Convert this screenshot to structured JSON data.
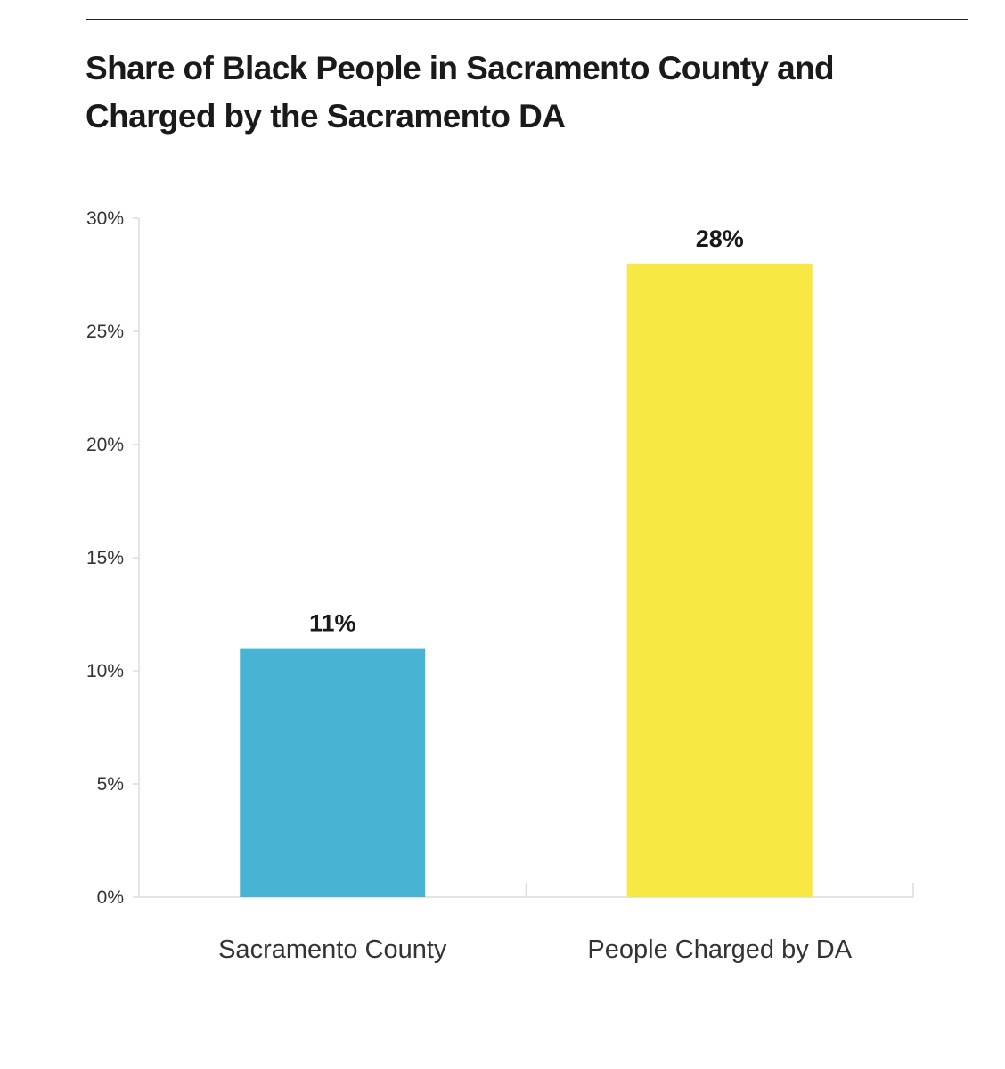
{
  "chart_data": {
    "type": "bar",
    "title": "Share of Black People in Sacramento County and Charged by the Sacramento DA",
    "categories": [
      "Sacramento County",
      "People Charged by DA"
    ],
    "values": [
      11,
      28
    ],
    "data_labels": [
      "11%",
      "28%"
    ],
    "colors": [
      "#48b4d4",
      "#f7e844"
    ],
    "ylim": [
      0,
      30
    ],
    "yticks": [
      0,
      5,
      10,
      15,
      20,
      25,
      30
    ],
    "ytick_labels": [
      "0%",
      "5%",
      "10%",
      "15%",
      "20%",
      "25%",
      "30%"
    ],
    "xlabel": "",
    "ylabel": "",
    "grid": false,
    "legend": "none"
  }
}
